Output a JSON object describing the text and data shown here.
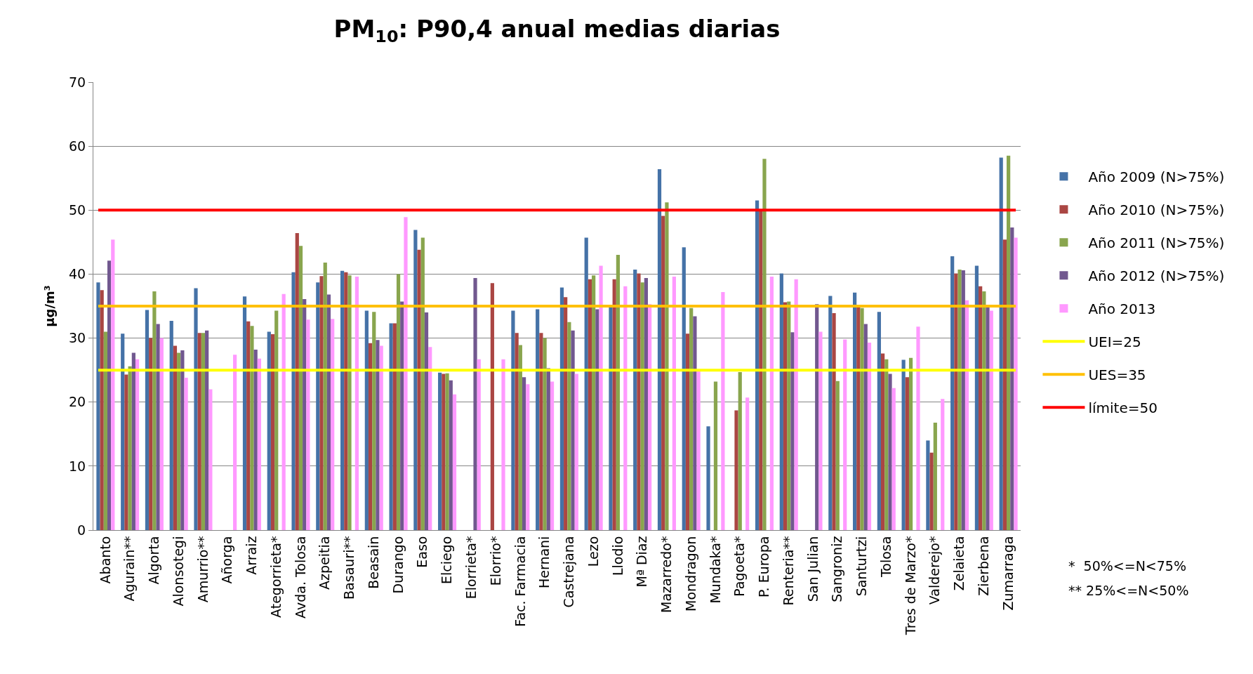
{
  "chart_data": {
    "type": "bar",
    "title": "PM$_{10}$: P90,4 anual medias diarias",
    "ylabel": "µg/m³",
    "categories": [
      "Abanto",
      "Agurain**",
      "Algorta",
      "Alonsotegi",
      "Amurrio**",
      "Añorga",
      "Arraiz",
      "Ategorrieta*",
      "Avda. Tolosa",
      "Azpeitia",
      "Basauri**",
      "Beasain",
      "Durango",
      "Easo",
      "Elciego",
      "Elorrieta*",
      "Elorrio*",
      "Fac. Farmacia",
      "Hernani",
      "Castrejana",
      "Lezo",
      "Llodio",
      "Mª Diaz",
      "Mazarredo*",
      "Mondragon",
      "Mundaka*",
      "Pagoeta*",
      "P. Europa",
      "Renteria**",
      "San Julian",
      "Sangroniz",
      "Santurtzi",
      "Tolosa",
      "Tres de Marzo*",
      "Valderejo*",
      "Zelaieta",
      "Zierbena",
      "Zumarraga"
    ],
    "series": [
      {
        "name": "Año 2009 (N>75%)",
        "color": "#4572a7",
        "values": [
          38.7,
          30.7,
          34.4,
          32.7,
          37.8,
          null,
          36.5,
          31.0,
          40.3,
          38.7,
          40.5,
          34.3,
          32.3,
          46.9,
          24.6,
          null,
          null,
          34.3,
          34.5,
          37.9,
          45.7,
          34.8,
          40.7,
          56.4,
          44.2,
          16.2,
          null,
          51.5,
          40.1,
          null,
          36.6,
          37.1,
          34.1,
          26.6,
          14.0,
          42.8,
          41.3,
          58.2
        ]
      },
      {
        "name": "Año 2010 (N>75%)",
        "color": "#aa4643",
        "values": [
          37.5,
          24.3,
          30.0,
          28.8,
          30.8,
          null,
          32.6,
          30.6,
          46.4,
          39.7,
          40.3,
          29.2,
          32.3,
          43.8,
          24.4,
          null,
          38.6,
          30.8,
          30.8,
          36.4,
          39.2,
          39.2,
          40.1,
          49.1,
          30.7,
          null,
          18.7,
          50.0,
          35.6,
          null,
          33.9,
          35.0,
          27.6,
          23.9,
          12.1,
          40.1,
          38.1,
          45.4
        ]
      },
      {
        "name": "Año 2011 (N>75%)",
        "color": "#89a54e",
        "values": [
          31.0,
          25.6,
          37.3,
          27.7,
          30.8,
          null,
          31.9,
          34.3,
          44.4,
          41.8,
          39.8,
          34.1,
          40.0,
          45.7,
          24.5,
          null,
          null,
          28.9,
          30.0,
          32.5,
          39.8,
          43.0,
          38.7,
          51.2,
          34.7,
          23.2,
          24.7,
          58.0,
          35.7,
          null,
          23.3,
          34.7,
          26.7,
          26.9,
          16.8,
          40.7,
          37.3,
          58.5
        ]
      },
      {
        "name": "Año 2012 (N>75%)",
        "color": "#71588f",
        "values": [
          42.1,
          27.7,
          32.2,
          28.1,
          31.2,
          null,
          28.2,
          null,
          36.1,
          36.8,
          null,
          29.7,
          35.7,
          34.0,
          23.4,
          39.4,
          null,
          23.9,
          25.3,
          31.2,
          34.5,
          null,
          39.4,
          null,
          33.4,
          null,
          null,
          null,
          30.9,
          35.3,
          null,
          32.2,
          24.4,
          null,
          null,
          40.6,
          34.8,
          47.3
        ]
      },
      {
        "name": "Año 2013",
        "color": "#ff99ff",
        "values": [
          45.4,
          26.7,
          30.0,
          23.8,
          22.0,
          27.4,
          26.8,
          36.9,
          32.9,
          33.0,
          39.6,
          28.8,
          48.9,
          28.6,
          21.2,
          26.7,
          26.7,
          22.8,
          23.2,
          24.4,
          41.3,
          38.1,
          35.3,
          39.6,
          24.8,
          37.2,
          20.7,
          39.6,
          39.2,
          31.0,
          29.8,
          29.3,
          22.2,
          31.8,
          20.5,
          35.9,
          34.3,
          45.7
        ]
      }
    ],
    "ref_lines": [
      {
        "axis": "y",
        "value": 25,
        "label": "UEI=25",
        "color": "#ffff00"
      },
      {
        "axis": "y",
        "value": 35,
        "label": "UES=35",
        "color": "#ffc000"
      },
      {
        "axis": "y",
        "value": 50,
        "label": "límite=50",
        "color": "#ff0000"
      }
    ],
    "ylim": [
      0,
      70
    ],
    "yticks": [
      0,
      10,
      20,
      30,
      40,
      50,
      60,
      70
    ],
    "grid": "y",
    "legend": "right",
    "annotations": [
      "*  50%<=N<75%",
      "** 25%<=N<50%"
    ]
  }
}
